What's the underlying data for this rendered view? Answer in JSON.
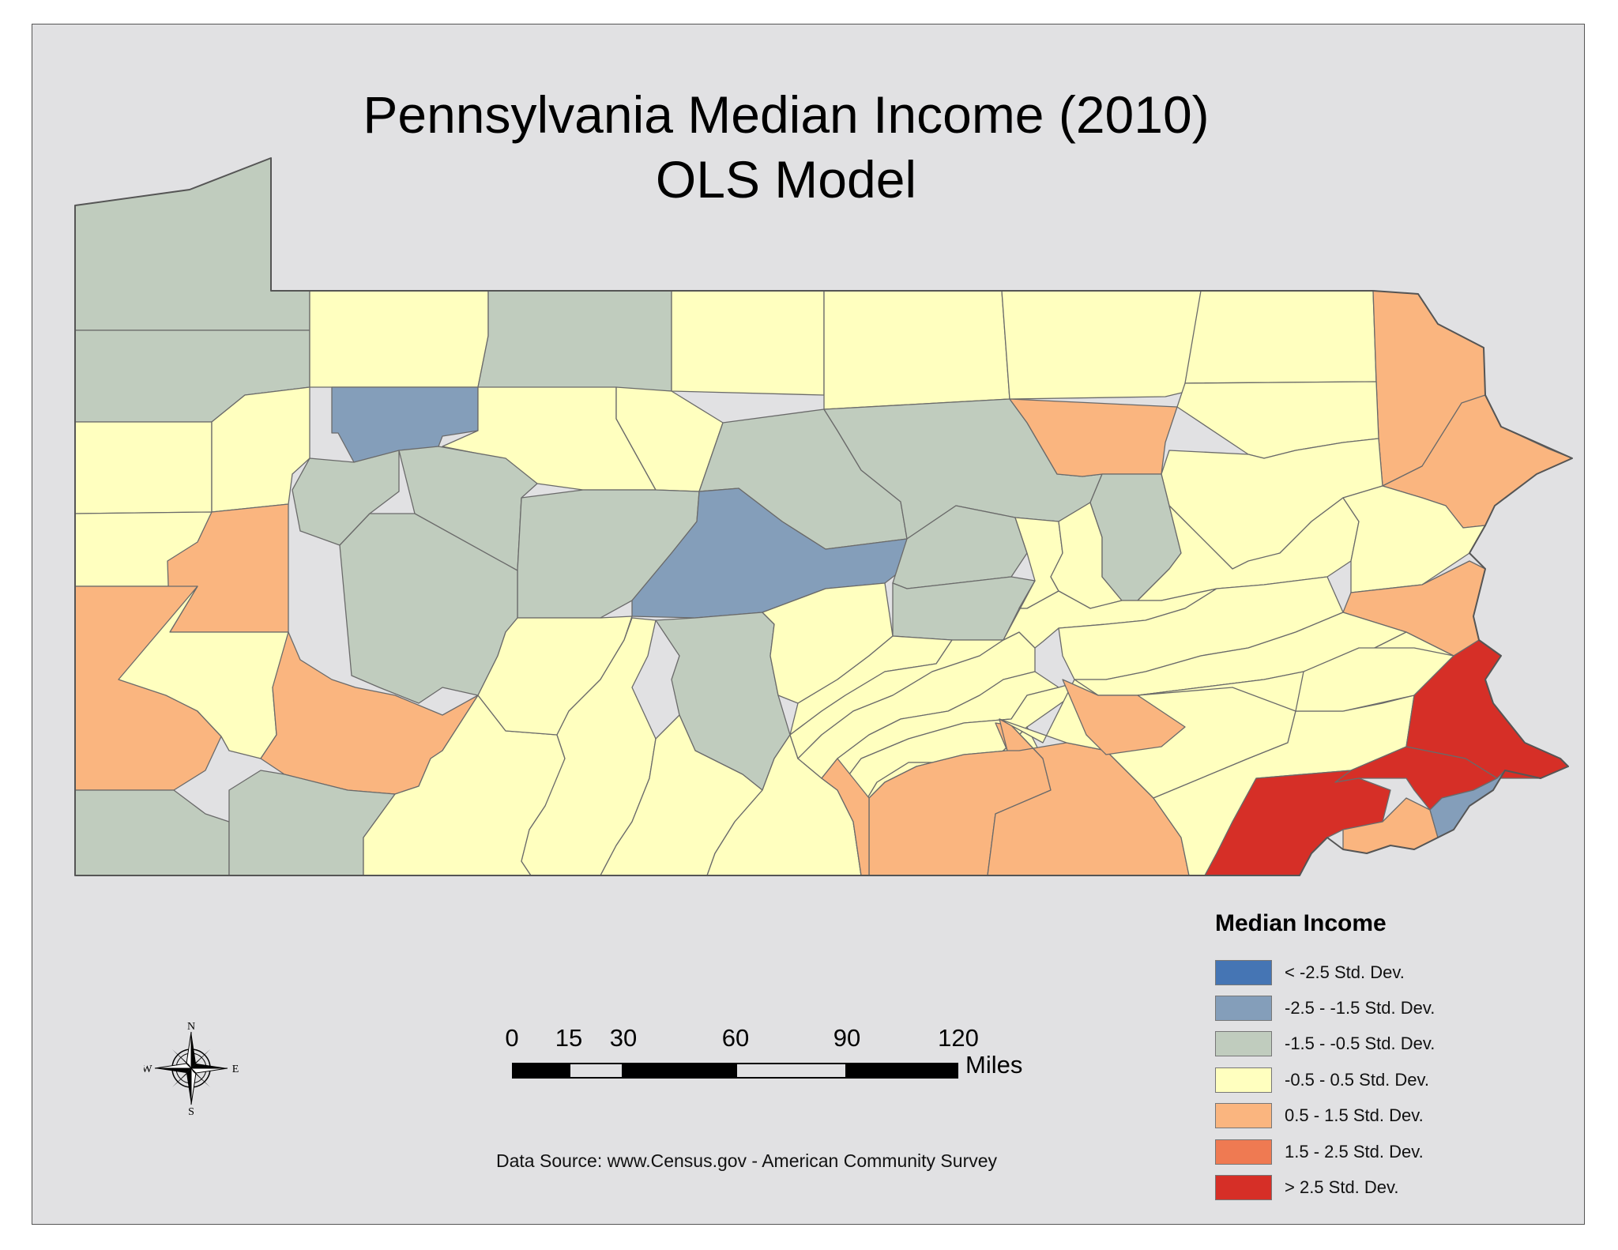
{
  "title": {
    "line1": "Pennsylvania Median Income (2010)",
    "line2": "OLS Model"
  },
  "legend": {
    "title": "Median Income",
    "items": [
      {
        "label": "< -2.5 Std. Dev.",
        "color": "#4575b4"
      },
      {
        "label": "-2.5 - -1.5 Std. Dev.",
        "color": "#849eba"
      },
      {
        "label": "-1.5 - -0.5 Std. Dev.",
        "color": "#c0ccbe"
      },
      {
        "label": "-0.5 - 0.5 Std. Dev.",
        "color": "#ffffbf"
      },
      {
        "label": "0.5 - 1.5 Std. Dev.",
        "color": "#fab57f"
      },
      {
        "label": "1.5 - 2.5 Std. Dev.",
        "color": "#ef7a52"
      },
      {
        "label": "> 2.5 Std. Dev.",
        "color": "#d62f27"
      }
    ]
  },
  "scale_bar": {
    "ticks": [
      "0",
      "15",
      "30",
      "60",
      "90",
      "120"
    ],
    "unit": "Miles"
  },
  "compass": {
    "n": "N",
    "s": "S",
    "e": "E",
    "w": "W"
  },
  "source": "Data Source: www.Census.gov - American Community Survey"
}
